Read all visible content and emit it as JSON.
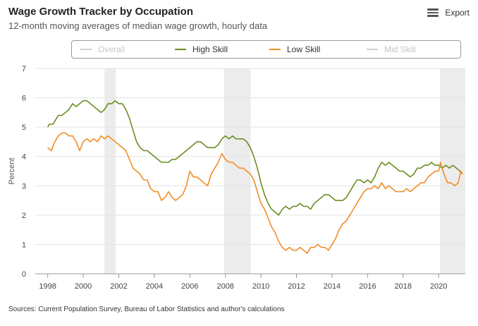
{
  "header": {
    "title": "Wage Growth Tracker by Occupation",
    "subtitle": "12-month moving averages of median wage growth, hourly data",
    "export_label": "Export",
    "export_icon": "menu-icon"
  },
  "legend": {
    "items": [
      {
        "label": "Overall",
        "active": false,
        "color": "#cfcfcf"
      },
      {
        "label": "High Skill",
        "active": true,
        "color": "#6b8e23"
      },
      {
        "label": "Low Skill",
        "active": true,
        "color": "#f28c28"
      },
      {
        "label": "Mid Skill",
        "active": false,
        "color": "#cfcfcf"
      }
    ]
  },
  "footer": {
    "source": "Sources: Current Population Survey, Bureau of Labor Statistics and author's calculations"
  },
  "chart_data": {
    "type": "line",
    "title": "Wage Growth Tracker by Occupation",
    "ylabel": "Percent",
    "xlabel": "",
    "xlim": [
      1997.3,
      2021.5
    ],
    "ylim": [
      0,
      7
    ],
    "yticks": [
      0,
      1,
      2,
      3,
      4,
      5,
      6,
      7
    ],
    "xticks": [
      1998,
      2000,
      2002,
      2004,
      2006,
      2008,
      2010,
      2012,
      2014,
      2016,
      2018,
      2020
    ],
    "grid": "horizontal",
    "recessions": [
      [
        2001.2,
        2001.83
      ],
      [
        2007.92,
        2009.42
      ],
      [
        2020.08,
        2021.5
      ]
    ],
    "series": [
      {
        "name": "High Skill",
        "color": "#6b8e23",
        "points": [
          [
            1998.0,
            5.0
          ],
          [
            1998.1,
            5.1
          ],
          [
            1998.3,
            5.1
          ],
          [
            1998.5,
            5.3
          ],
          [
            1998.6,
            5.4
          ],
          [
            1998.8,
            5.4
          ],
          [
            1999.0,
            5.5
          ],
          [
            1999.2,
            5.6
          ],
          [
            1999.4,
            5.8
          ],
          [
            1999.6,
            5.7
          ],
          [
            1999.8,
            5.8
          ],
          [
            2000.0,
            5.9
          ],
          [
            2000.2,
            5.9
          ],
          [
            2000.4,
            5.8
          ],
          [
            2000.6,
            5.7
          ],
          [
            2000.8,
            5.6
          ],
          [
            2001.0,
            5.5
          ],
          [
            2001.2,
            5.6
          ],
          [
            2001.4,
            5.8
          ],
          [
            2001.6,
            5.8
          ],
          [
            2001.8,
            5.9
          ],
          [
            2002.0,
            5.8
          ],
          [
            2002.2,
            5.8
          ],
          [
            2002.4,
            5.6
          ],
          [
            2002.6,
            5.3
          ],
          [
            2002.8,
            4.9
          ],
          [
            2003.0,
            4.5
          ],
          [
            2003.2,
            4.3
          ],
          [
            2003.4,
            4.2
          ],
          [
            2003.6,
            4.2
          ],
          [
            2003.8,
            4.1
          ],
          [
            2004.0,
            4.0
          ],
          [
            2004.2,
            3.9
          ],
          [
            2004.4,
            3.8
          ],
          [
            2004.6,
            3.8
          ],
          [
            2004.8,
            3.8
          ],
          [
            2005.0,
            3.9
          ],
          [
            2005.2,
            3.9
          ],
          [
            2005.4,
            4.0
          ],
          [
            2005.6,
            4.1
          ],
          [
            2005.8,
            4.2
          ],
          [
            2006.0,
            4.3
          ],
          [
            2006.2,
            4.4
          ],
          [
            2006.4,
            4.5
          ],
          [
            2006.6,
            4.5
          ],
          [
            2006.8,
            4.4
          ],
          [
            2007.0,
            4.3
          ],
          [
            2007.2,
            4.3
          ],
          [
            2007.4,
            4.3
          ],
          [
            2007.6,
            4.4
          ],
          [
            2007.8,
            4.6
          ],
          [
            2008.0,
            4.7
          ],
          [
            2008.2,
            4.6
          ],
          [
            2008.4,
            4.7
          ],
          [
            2008.6,
            4.6
          ],
          [
            2008.8,
            4.6
          ],
          [
            2009.0,
            4.6
          ],
          [
            2009.2,
            4.5
          ],
          [
            2009.4,
            4.3
          ],
          [
            2009.6,
            4.0
          ],
          [
            2009.8,
            3.6
          ],
          [
            2010.0,
            3.1
          ],
          [
            2010.2,
            2.7
          ],
          [
            2010.4,
            2.4
          ],
          [
            2010.6,
            2.2
          ],
          [
            2010.8,
            2.1
          ],
          [
            2011.0,
            2.0
          ],
          [
            2011.2,
            2.2
          ],
          [
            2011.4,
            2.3
          ],
          [
            2011.6,
            2.2
          ],
          [
            2011.8,
            2.3
          ],
          [
            2012.0,
            2.3
          ],
          [
            2012.2,
            2.4
          ],
          [
            2012.4,
            2.3
          ],
          [
            2012.6,
            2.3
          ],
          [
            2012.8,
            2.2
          ],
          [
            2013.0,
            2.4
          ],
          [
            2013.2,
            2.5
          ],
          [
            2013.4,
            2.6
          ],
          [
            2013.6,
            2.7
          ],
          [
            2013.8,
            2.7
          ],
          [
            2014.0,
            2.6
          ],
          [
            2014.2,
            2.5
          ],
          [
            2014.4,
            2.5
          ],
          [
            2014.6,
            2.5
          ],
          [
            2014.8,
            2.6
          ],
          [
            2015.0,
            2.8
          ],
          [
            2015.2,
            3.0
          ],
          [
            2015.4,
            3.2
          ],
          [
            2015.6,
            3.2
          ],
          [
            2015.8,
            3.1
          ],
          [
            2016.0,
            3.2
          ],
          [
            2016.2,
            3.1
          ],
          [
            2016.4,
            3.3
          ],
          [
            2016.6,
            3.6
          ],
          [
            2016.8,
            3.8
          ],
          [
            2017.0,
            3.7
          ],
          [
            2017.2,
            3.8
          ],
          [
            2017.4,
            3.7
          ],
          [
            2017.6,
            3.6
          ],
          [
            2017.8,
            3.5
          ],
          [
            2018.0,
            3.5
          ],
          [
            2018.2,
            3.4
          ],
          [
            2018.4,
            3.3
          ],
          [
            2018.6,
            3.4
          ],
          [
            2018.8,
            3.6
          ],
          [
            2019.0,
            3.6
          ],
          [
            2019.2,
            3.7
          ],
          [
            2019.4,
            3.7
          ],
          [
            2019.6,
            3.8
          ],
          [
            2019.8,
            3.7
          ],
          [
            2020.0,
            3.7
          ],
          [
            2020.2,
            3.6
          ],
          [
            2020.4,
            3.7
          ],
          [
            2020.6,
            3.6
          ],
          [
            2020.8,
            3.7
          ],
          [
            2021.0,
            3.6
          ],
          [
            2021.2,
            3.5
          ],
          [
            2021.35,
            3.4
          ]
        ]
      },
      {
        "name": "Low Skill",
        "color": "#f28c28",
        "points": [
          [
            1998.0,
            4.3
          ],
          [
            1998.2,
            4.2
          ],
          [
            1998.4,
            4.5
          ],
          [
            1998.6,
            4.7
          ],
          [
            1998.8,
            4.8
          ],
          [
            1999.0,
            4.8
          ],
          [
            1999.2,
            4.7
          ],
          [
            1999.4,
            4.7
          ],
          [
            1999.6,
            4.5
          ],
          [
            1999.8,
            4.2
          ],
          [
            2000.0,
            4.5
          ],
          [
            2000.2,
            4.6
          ],
          [
            2000.4,
            4.5
          ],
          [
            2000.6,
            4.6
          ],
          [
            2000.8,
            4.5
          ],
          [
            2001.0,
            4.7
          ],
          [
            2001.2,
            4.6
          ],
          [
            2001.4,
            4.7
          ],
          [
            2001.6,
            4.6
          ],
          [
            2001.8,
            4.5
          ],
          [
            2002.0,
            4.4
          ],
          [
            2002.2,
            4.3
          ],
          [
            2002.4,
            4.2
          ],
          [
            2002.6,
            3.9
          ],
          [
            2002.8,
            3.6
          ],
          [
            2003.0,
            3.5
          ],
          [
            2003.2,
            3.4
          ],
          [
            2003.4,
            3.2
          ],
          [
            2003.6,
            3.2
          ],
          [
            2003.8,
            2.9
          ],
          [
            2004.0,
            2.8
          ],
          [
            2004.2,
            2.8
          ],
          [
            2004.4,
            2.5
          ],
          [
            2004.6,
            2.6
          ],
          [
            2004.8,
            2.8
          ],
          [
            2005.0,
            2.6
          ],
          [
            2005.2,
            2.5
          ],
          [
            2005.4,
            2.6
          ],
          [
            2005.6,
            2.7
          ],
          [
            2005.8,
            3.0
          ],
          [
            2006.0,
            3.5
          ],
          [
            2006.2,
            3.3
          ],
          [
            2006.4,
            3.3
          ],
          [
            2006.6,
            3.2
          ],
          [
            2006.8,
            3.1
          ],
          [
            2007.0,
            3.0
          ],
          [
            2007.2,
            3.4
          ],
          [
            2007.4,
            3.6
          ],
          [
            2007.6,
            3.8
          ],
          [
            2007.8,
            4.1
          ],
          [
            2008.0,
            3.9
          ],
          [
            2008.2,
            3.8
          ],
          [
            2008.4,
            3.8
          ],
          [
            2008.6,
            3.7
          ],
          [
            2008.8,
            3.6
          ],
          [
            2009.0,
            3.6
          ],
          [
            2009.2,
            3.5
          ],
          [
            2009.4,
            3.4
          ],
          [
            2009.6,
            3.2
          ],
          [
            2009.8,
            2.8
          ],
          [
            2010.0,
            2.4
          ],
          [
            2010.2,
            2.2
          ],
          [
            2010.4,
            1.9
          ],
          [
            2010.6,
            1.6
          ],
          [
            2010.8,
            1.4
          ],
          [
            2011.0,
            1.1
          ],
          [
            2011.2,
            0.9
          ],
          [
            2011.4,
            0.8
          ],
          [
            2011.6,
            0.9
          ],
          [
            2011.8,
            0.8
          ],
          [
            2012.0,
            0.8
          ],
          [
            2012.2,
            0.9
          ],
          [
            2012.4,
            0.8
          ],
          [
            2012.6,
            0.7
          ],
          [
            2012.8,
            0.9
          ],
          [
            2013.0,
            0.9
          ],
          [
            2013.2,
            1.0
          ],
          [
            2013.4,
            0.9
          ],
          [
            2013.6,
            0.9
          ],
          [
            2013.8,
            0.8
          ],
          [
            2014.0,
            1.0
          ],
          [
            2014.2,
            1.2
          ],
          [
            2014.4,
            1.5
          ],
          [
            2014.6,
            1.7
          ],
          [
            2014.8,
            1.8
          ],
          [
            2015.0,
            2.0
          ],
          [
            2015.2,
            2.2
          ],
          [
            2015.4,
            2.4
          ],
          [
            2015.6,
            2.6
          ],
          [
            2015.8,
            2.8
          ],
          [
            2016.0,
            2.9
          ],
          [
            2016.2,
            2.9
          ],
          [
            2016.4,
            3.0
          ],
          [
            2016.6,
            2.9
          ],
          [
            2016.8,
            3.1
          ],
          [
            2017.0,
            2.9
          ],
          [
            2017.2,
            3.0
          ],
          [
            2017.4,
            2.9
          ],
          [
            2017.6,
            2.8
          ],
          [
            2017.8,
            2.8
          ],
          [
            2018.0,
            2.8
          ],
          [
            2018.2,
            2.9
          ],
          [
            2018.4,
            2.8
          ],
          [
            2018.6,
            2.9
          ],
          [
            2018.8,
            3.0
          ],
          [
            2019.0,
            3.1
          ],
          [
            2019.2,
            3.1
          ],
          [
            2019.4,
            3.3
          ],
          [
            2019.6,
            3.4
          ],
          [
            2019.8,
            3.5
          ],
          [
            2020.0,
            3.5
          ],
          [
            2020.1,
            3.8
          ],
          [
            2020.3,
            3.4
          ],
          [
            2020.5,
            3.1
          ],
          [
            2020.7,
            3.1
          ],
          [
            2020.9,
            3.0
          ],
          [
            2021.1,
            3.1
          ],
          [
            2021.25,
            3.5
          ],
          [
            2021.35,
            3.4
          ]
        ]
      }
    ]
  }
}
